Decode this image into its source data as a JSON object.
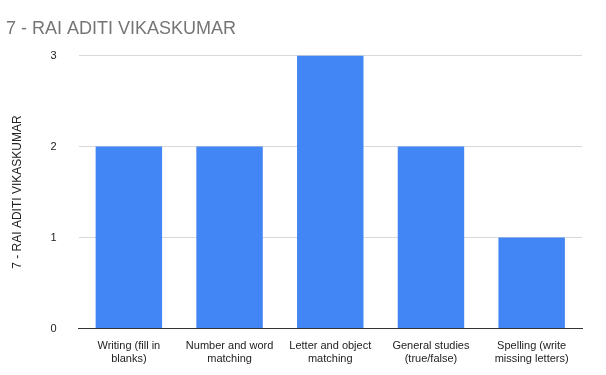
{
  "chart_data": {
    "type": "bar",
    "title": "7 - RAI ADITI VIKASKUMAR",
    "ylabel": "7 - RAI ADITI VIKASKUMAR",
    "categories": [
      "Writing (fill in blanks)",
      "Number and word matching",
      "Letter and object matching",
      "General studies (true/false)",
      "Spelling (write missing letters)"
    ],
    "values": [
      2,
      2,
      3,
      2,
      1
    ],
    "color": "#4285f4",
    "ylim": [
      0,
      3
    ],
    "yticks": [
      0,
      1,
      2,
      3
    ],
    "grid": true
  }
}
